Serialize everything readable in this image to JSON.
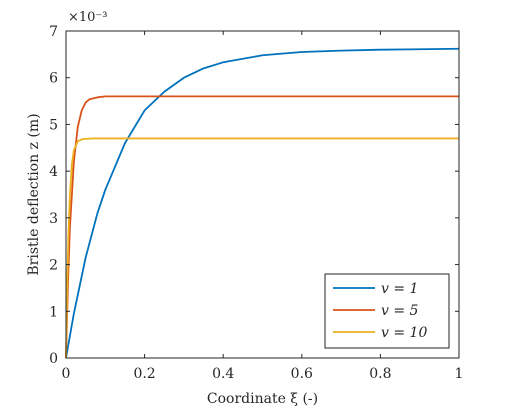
{
  "chart_data": {
    "type": "line",
    "title": "",
    "xlabel": "Coordinate ξ (-)",
    "ylabel": "Bristle deflection z (m)",
    "y_multiplier_label": "×10⁻³",
    "xlim": [
      0,
      1
    ],
    "ylim": [
      0,
      7
    ],
    "x_ticks": [
      "0",
      "0.2",
      "0.4",
      "0.6",
      "0.8",
      "1"
    ],
    "y_ticks": [
      "0",
      "1",
      "2",
      "3",
      "4",
      "5",
      "6",
      "7"
    ],
    "grid": false,
    "legend_position": "bottom-right",
    "series": [
      {
        "name": "v = 1",
        "color": "#0072BD",
        "x": [
          0,
          0.02,
          0.05,
          0.08,
          0.1,
          0.15,
          0.2,
          0.25,
          0.3,
          0.35,
          0.4,
          0.5,
          0.6,
          0.7,
          0.8,
          0.9,
          1.0
        ],
        "y": [
          0,
          0.95,
          2.15,
          3.1,
          3.6,
          4.6,
          5.3,
          5.7,
          6.0,
          6.2,
          6.33,
          6.48,
          6.55,
          6.58,
          6.6,
          6.61,
          6.62
        ]
      },
      {
        "name": "v = 5",
        "color": "#D95319",
        "x": [
          0,
          0.005,
          0.01,
          0.02,
          0.03,
          0.04,
          0.05,
          0.06,
          0.08,
          0.1,
          0.15,
          0.2,
          0.4,
          0.6,
          0.8,
          1.0
        ],
        "y": [
          0,
          1.6,
          2.8,
          4.2,
          4.95,
          5.3,
          5.47,
          5.54,
          5.58,
          5.6,
          5.6,
          5.6,
          5.6,
          5.6,
          5.6,
          5.6
        ]
      },
      {
        "name": "v = 10",
        "color": "#EDB120",
        "x": [
          0,
          0.003,
          0.006,
          0.01,
          0.015,
          0.02,
          0.03,
          0.04,
          0.05,
          0.07,
          0.1,
          0.2,
          0.4,
          0.6,
          0.8,
          1.0
        ],
        "y": [
          0,
          1.5,
          2.6,
          3.5,
          4.15,
          4.45,
          4.64,
          4.68,
          4.69,
          4.7,
          4.7,
          4.7,
          4.7,
          4.7,
          4.7,
          4.7
        ]
      }
    ]
  }
}
